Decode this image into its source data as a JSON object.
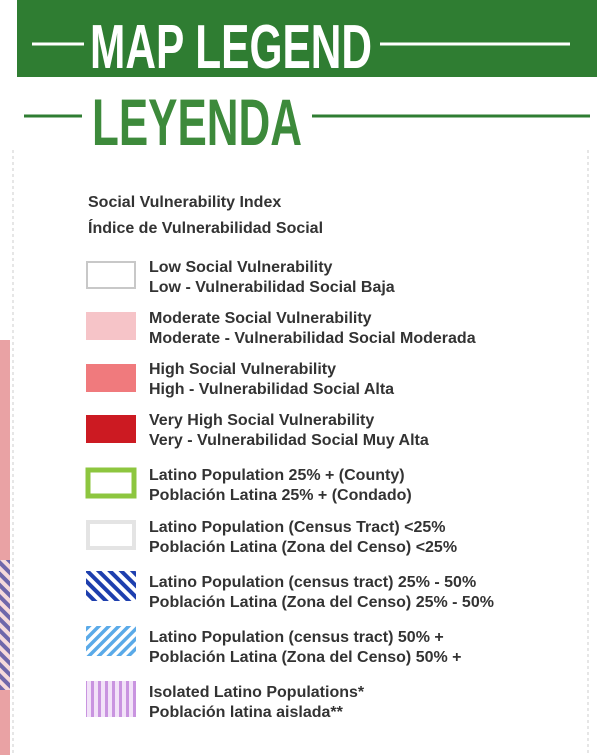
{
  "header": {
    "title": "MAP LEGEND",
    "subtitle": "LEYENDA"
  },
  "section": {
    "title": "Social Vulnerability Index",
    "subtitle": "Índice de Vulnerabilidad Social"
  },
  "legend": {
    "items": [
      {
        "label": "Low Social Vulnerability",
        "sublabel": "Low - Vulnerabilidad Social Baja"
      },
      {
        "label": "Moderate Social Vulnerability",
        "sublabel": "Moderate - Vulnerabilidad Social Moderada"
      },
      {
        "label": "High Social Vulnerability",
        "sublabel": "High - Vulnerabilidad Social Alta"
      },
      {
        "label": "Very High Social Vulnerability",
        "sublabel": "Very - Vulnerabilidad Social Muy Alta"
      },
      {
        "label": "Latino Population 25% + (County)",
        "sublabel": "Población Latina 25% + (Condado)"
      },
      {
        "label": "Latino Population (Census Tract) <25%",
        "sublabel": "Población Latina (Zona del Censo) <25%"
      },
      {
        "label": "Latino Population (census tract) 25% - 50%",
        "sublabel": "Población Latina (Zona del Censo) 25% - 50%"
      },
      {
        "label": "Latino Population (census tract) 50% +",
        "sublabel": "Población Latina (Zona del Censo) 50% +"
      },
      {
        "label": "Isolated Latino Populations*",
        "sublabel": "Población latina aislada**"
      }
    ]
  }
}
